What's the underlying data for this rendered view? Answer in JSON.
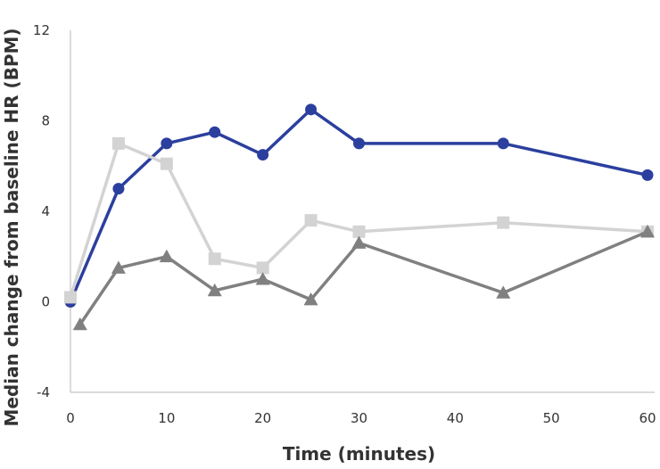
{
  "chart_data": {
    "type": "line",
    "title": "",
    "xlabel": "Time (minutes)",
    "ylabel": "Median change from baseline HR (BPM)",
    "xlim": [
      0,
      60
    ],
    "ylim": [
      -4,
      12
    ],
    "x_ticks": [
      0,
      10,
      20,
      30,
      40,
      50,
      60
    ],
    "y_ticks": [
      -4,
      0,
      4,
      8,
      12
    ],
    "grid": false,
    "legend": "none",
    "series": [
      {
        "color": "#2b3f9e",
        "marker": "circle",
        "points": [
          [
            0,
            0
          ],
          [
            5,
            5
          ],
          [
            10,
            7
          ],
          [
            15,
            7.5
          ],
          [
            20,
            6.5
          ],
          [
            25,
            8.5
          ],
          [
            30,
            7
          ],
          [
            45,
            7
          ],
          [
            60,
            5.6
          ]
        ]
      },
      {
        "color": "#d3d3d3",
        "marker": "square",
        "points": [
          [
            0,
            0.2
          ],
          [
            5,
            7
          ],
          [
            10,
            6.1
          ],
          [
            15,
            1.9
          ],
          [
            20,
            1.5
          ],
          [
            25,
            3.6
          ],
          [
            30,
            3.1
          ],
          [
            45,
            3.5
          ],
          [
            60,
            3.1
          ]
        ]
      },
      {
        "color": "#808080",
        "marker": "triangle",
        "points": [
          [
            1,
            -1
          ],
          [
            5,
            1.5
          ],
          [
            10,
            2
          ],
          [
            15,
            0.5
          ],
          [
            20,
            1
          ],
          [
            25,
            0.1
          ],
          [
            30,
            2.6
          ],
          [
            45,
            0.4
          ],
          [
            60,
            3.1
          ]
        ]
      }
    ]
  }
}
